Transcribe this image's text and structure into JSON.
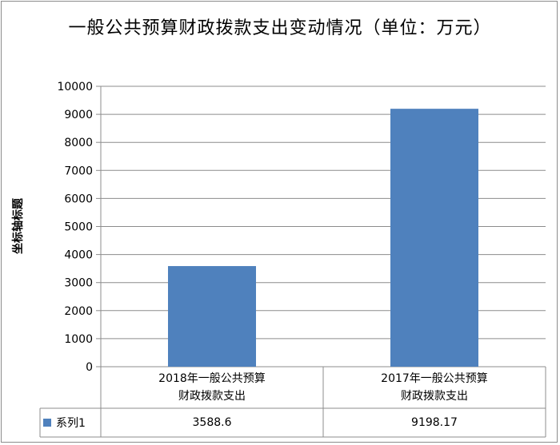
{
  "chart_data": {
    "type": "bar",
    "title": "一般公共预算财政拨款支出变动情况（单位：万元）",
    "ylabel": "坐标轴标题",
    "xlabel": "",
    "ylim": [
      0,
      10000
    ],
    "yticks": [
      0,
      1000,
      2000,
      3000,
      4000,
      5000,
      6000,
      7000,
      8000,
      9000,
      10000
    ],
    "categories": [
      "2018年一般公共预算财政拨款支出",
      "2017年一般公共预算财政拨款支出"
    ],
    "series": [
      {
        "name": "系列1",
        "values": [
          3588.6,
          9198.17
        ],
        "color": "#4f81bd"
      }
    ],
    "data_table": {
      "series_label": "系列1",
      "values_text": [
        "3588.6",
        "9198.17"
      ]
    },
    "grid": true,
    "legend": "data-table"
  }
}
